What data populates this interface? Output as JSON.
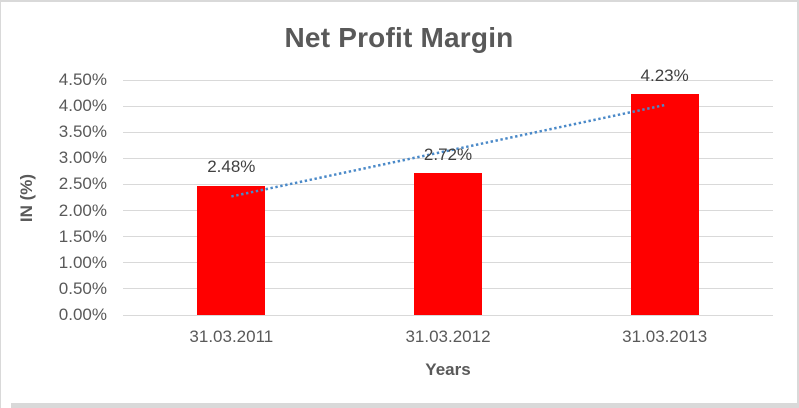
{
  "frame": {
    "background": "#ffffff",
    "border_color": "#d9d9d9",
    "bottom_strip_color": "#d9d9d9"
  },
  "chart_data": {
    "type": "bar",
    "title": "Net Profit Margin",
    "categories": [
      "31.03.2011",
      "31.03.2012",
      "31.03.2013"
    ],
    "values": [
      2.48,
      2.72,
      4.23
    ],
    "data_labels": [
      "2.48%",
      "2.72%",
      "4.23%"
    ],
    "xlabel": "Years",
    "ylabel": "IN (%)",
    "ylim": [
      0,
      4.5
    ],
    "ytick_step": 0.5,
    "ytick_labels": [
      "0.00%",
      "0.50%",
      "1.00%",
      "1.50%",
      "2.00%",
      "2.50%",
      "3.00%",
      "3.50%",
      "4.00%",
      "4.50%"
    ],
    "grid": true,
    "legend": "none",
    "bar_color": "#ff0000",
    "trendline": {
      "type": "linear",
      "style": "dotted",
      "color": "#4a89c8",
      "start_value": 2.27,
      "end_value": 4.02
    },
    "colors": {
      "title": "#595959",
      "axis_text": "#595959",
      "data_label": "#404040",
      "gridline": "#d9d9d9"
    }
  }
}
